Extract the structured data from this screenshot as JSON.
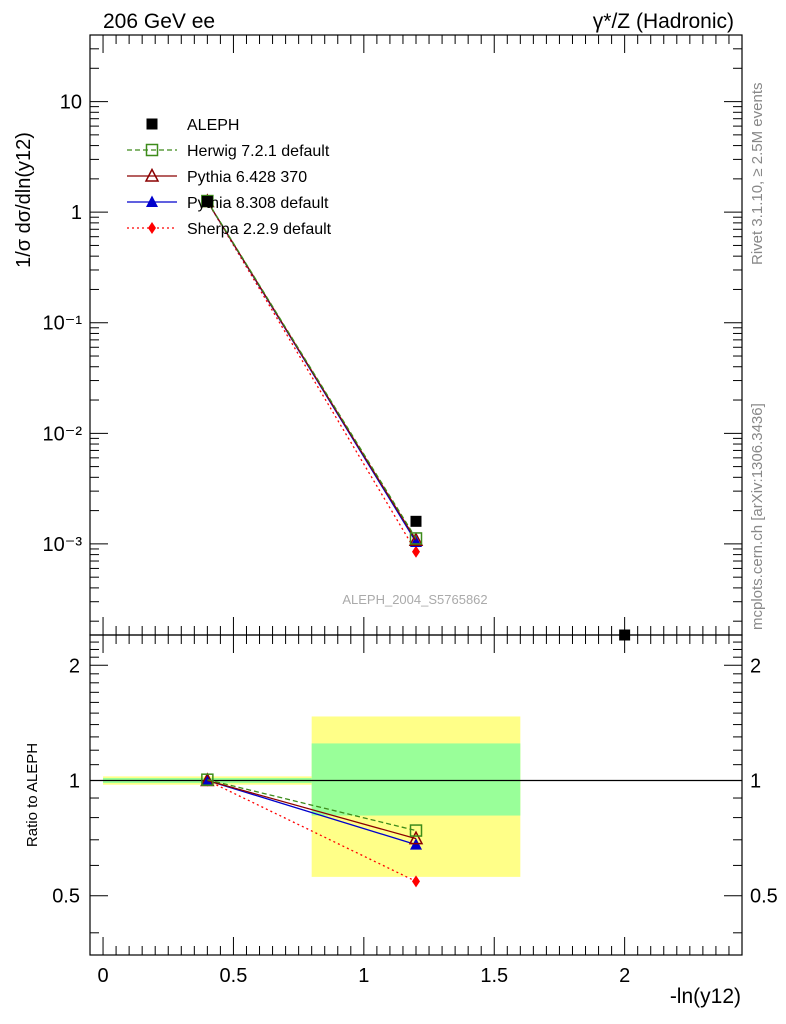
{
  "header": {
    "left_title": "206 GeV ee",
    "right_title": "γ*/Z (Hadronic)",
    "watermark": "ALEPH_2004_S5765862",
    "side_text_rivet": "Rivet 3.1.10, ≥ 2.5M events",
    "side_text_mcplots": "mcplots.cern.ch [arXiv:1306.3436]"
  },
  "axes": {
    "xlabel": "-ln(y12)",
    "ylabel_main": "1/σ dσ/dln(y12)",
    "ylabel_ratio": "Ratio to ALEPH",
    "x_ticks": [
      "0",
      "0.5",
      "1",
      "1.5",
      "2"
    ],
    "main_y_ticks": [
      "10",
      "1",
      "10⁻¹",
      "10⁻²",
      "10⁻³"
    ],
    "ratio_y_ticks": [
      "2",
      "1",
      "0.5"
    ]
  },
  "legend": {
    "items": [
      {
        "label": "ALEPH",
        "color": "#000000",
        "marker": "square-filled",
        "line": "none"
      },
      {
        "label": "Herwig 7.2.1 default",
        "color": "#3d8b1a",
        "marker": "square-open",
        "line": "dashed"
      },
      {
        "label": "Pythia 6.428 370",
        "color": "#8b0000",
        "marker": "triangle-open",
        "line": "solid"
      },
      {
        "label": "Pythia 8.308 default",
        "color": "#0000cc",
        "marker": "triangle-filled",
        "line": "solid"
      },
      {
        "label": "Sherpa 2.2.9 default",
        "color": "#ff0000",
        "marker": "diamond-filled",
        "line": "dotted"
      }
    ]
  },
  "chart_data": [
    {
      "type": "scatter",
      "panel": "main",
      "x_range": [
        -0.05,
        2.45
      ],
      "y_range_log": [
        0.00015,
        40
      ],
      "yscale": "log",
      "grid": false,
      "legend_placement": "top-left",
      "series": [
        {
          "name": "ALEPH",
          "x": [
            0.4,
            1.2,
            2.0
          ],
          "y": [
            1.25,
            0.0016,
            0.00015
          ]
        },
        {
          "name": "Herwig 7.2.1 default",
          "x": [
            0.4,
            1.2
          ],
          "y": [
            1.26,
            0.00112
          ]
        },
        {
          "name": "Pythia 6.428 370",
          "x": [
            0.4,
            1.2
          ],
          "y": [
            1.25,
            0.00108
          ]
        },
        {
          "name": "Pythia 8.308 default",
          "x": [
            0.4,
            1.2
          ],
          "y": [
            1.25,
            0.00104
          ]
        },
        {
          "name": "Sherpa 2.2.9 default",
          "x": [
            0.4,
            1.2
          ],
          "y": [
            1.25,
            0.00085
          ]
        }
      ]
    },
    {
      "type": "scatter",
      "panel": "ratio",
      "x_range": [
        -0.05,
        2.45
      ],
      "y_range_log": [
        0.35,
        2.4
      ],
      "yscale": "log",
      "reference_line": 1,
      "bands": [
        {
          "x": [
            0.0,
            0.8
          ],
          "yellow": [
            0.975,
            1.025
          ],
          "green": [
            0.985,
            1.015
          ]
        },
        {
          "x": [
            0.8,
            1.6
          ],
          "yellow": [
            0.56,
            1.47
          ],
          "green": [
            0.81,
            1.25
          ]
        }
      ],
      "series": [
        {
          "name": "Herwig 7.2.1 default",
          "x": [
            0.4,
            1.2
          ],
          "y": [
            1.005,
            0.74
          ]
        },
        {
          "name": "Pythia 6.428 370",
          "x": [
            0.4,
            1.2
          ],
          "y": [
            1.0,
            0.705
          ]
        },
        {
          "name": "Pythia 8.308 default",
          "x": [
            0.4,
            1.2
          ],
          "y": [
            1.0,
            0.68
          ]
        },
        {
          "name": "Sherpa 2.2.9 default",
          "x": [
            0.4,
            1.2
          ],
          "y": [
            1.0,
            0.545
          ]
        }
      ]
    }
  ]
}
